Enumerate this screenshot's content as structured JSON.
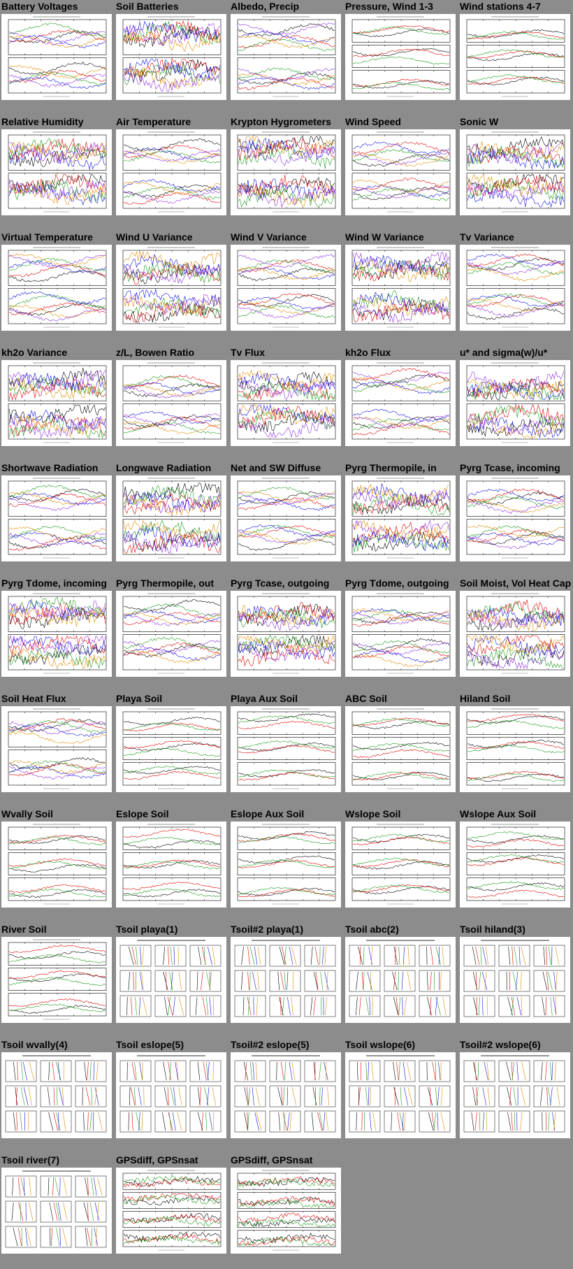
{
  "page": {
    "background": "#8c8c8c",
    "plot_background": "#ffffff",
    "line_colors": [
      "#000000",
      "#e00000",
      "#1a9a1a",
      "#1010e0",
      "#e08a00",
      "#8a2be2",
      "#00a0a0",
      "#c8c800",
      "#a05a2c",
      "#ff66cc"
    ]
  },
  "plots": [
    {
      "title": "Battery Voltages",
      "kind": "ts2"
    },
    {
      "title": "Soil Batteries",
      "kind": "ts2"
    },
    {
      "title": "Albedo, Precip",
      "kind": "ts2"
    },
    {
      "title": "Pressure, Wind 1-3",
      "kind": "ts3"
    },
    {
      "title": "Wind stations 4-7",
      "kind": "ts3"
    },
    {
      "title": "Relative Humidity",
      "kind": "ts2"
    },
    {
      "title": "Air Temperature",
      "kind": "ts2"
    },
    {
      "title": "Krypton Hygrometers",
      "kind": "ts2"
    },
    {
      "title": "Wind Speed",
      "kind": "ts2"
    },
    {
      "title": "Sonic W",
      "kind": "ts2"
    },
    {
      "title": "Virtual Temperature",
      "kind": "ts2"
    },
    {
      "title": "Wind U Variance",
      "kind": "ts2"
    },
    {
      "title": "Wind V Variance",
      "kind": "ts2"
    },
    {
      "title": "Wind W Variance",
      "kind": "ts2"
    },
    {
      "title": "Tv Variance",
      "kind": "ts2"
    },
    {
      "title": "kh2o Variance",
      "kind": "ts2"
    },
    {
      "title": "z/L, Bowen Ratio",
      "kind": "ts2"
    },
    {
      "title": "Tv Flux",
      "kind": "ts2"
    },
    {
      "title": "kh2o Flux",
      "kind": "ts2"
    },
    {
      "title": "u* and sigma(w)/u*",
      "kind": "ts2"
    },
    {
      "title": "Shortwave Radiation",
      "kind": "ts2"
    },
    {
      "title": "Longwave Radiation",
      "kind": "ts2"
    },
    {
      "title": "Net and SW Diffuse",
      "kind": "ts2"
    },
    {
      "title": "Pyrg Thermopile, in",
      "kind": "ts2"
    },
    {
      "title": "Pyrg Tcase, incoming",
      "kind": "ts2"
    },
    {
      "title": "Pyrg Tdome, incoming",
      "kind": "ts2"
    },
    {
      "title": "Pyrg Thermopile, out",
      "kind": "ts2"
    },
    {
      "title": "Pyrg Tcase, outgoing",
      "kind": "ts2"
    },
    {
      "title": "Pyrg Tdome, outgoing",
      "kind": "ts2"
    },
    {
      "title": "Soil Moist, Vol Heat Cap",
      "kind": "ts2"
    },
    {
      "title": "Soil Heat Flux",
      "kind": "ts2"
    },
    {
      "title": "Playa Soil",
      "kind": "ts3"
    },
    {
      "title": "Playa Aux Soil",
      "kind": "ts3"
    },
    {
      "title": "ABC Soil",
      "kind": "ts3"
    },
    {
      "title": "Hiland Soil",
      "kind": "ts3"
    },
    {
      "title": "Wvally Soil",
      "kind": "ts3"
    },
    {
      "title": "Eslope Soil",
      "kind": "ts3"
    },
    {
      "title": "Eslope Aux Soil",
      "kind": "ts3"
    },
    {
      "title": "Wslope Soil",
      "kind": "ts3"
    },
    {
      "title": "Wslope Aux Soil",
      "kind": "ts3"
    },
    {
      "title": "River Soil",
      "kind": "ts3"
    },
    {
      "title": "Tsoil playa(1)",
      "kind": "prof"
    },
    {
      "title": "Tsoil#2 playa(1)",
      "kind": "prof"
    },
    {
      "title": "Tsoil abc(2)",
      "kind": "prof"
    },
    {
      "title": "Tsoil hiland(3)",
      "kind": "prof"
    },
    {
      "title": "Tsoil wvally(4)",
      "kind": "prof"
    },
    {
      "title": "Tsoil eslope(5)",
      "kind": "prof"
    },
    {
      "title": "Tsoil#2 eslope(5)",
      "kind": "prof"
    },
    {
      "title": "Tsoil wslope(6)",
      "kind": "prof"
    },
    {
      "title": "Tsoil#2 wslope(6)",
      "kind": "prof"
    },
    {
      "title": "Tsoil river(7)",
      "kind": "prof"
    },
    {
      "title": "GPSdiff, GPSnsat",
      "kind": "ts4"
    },
    {
      "title": "GPSdiff, GPSnsat",
      "kind": "ts4"
    }
  ]
}
